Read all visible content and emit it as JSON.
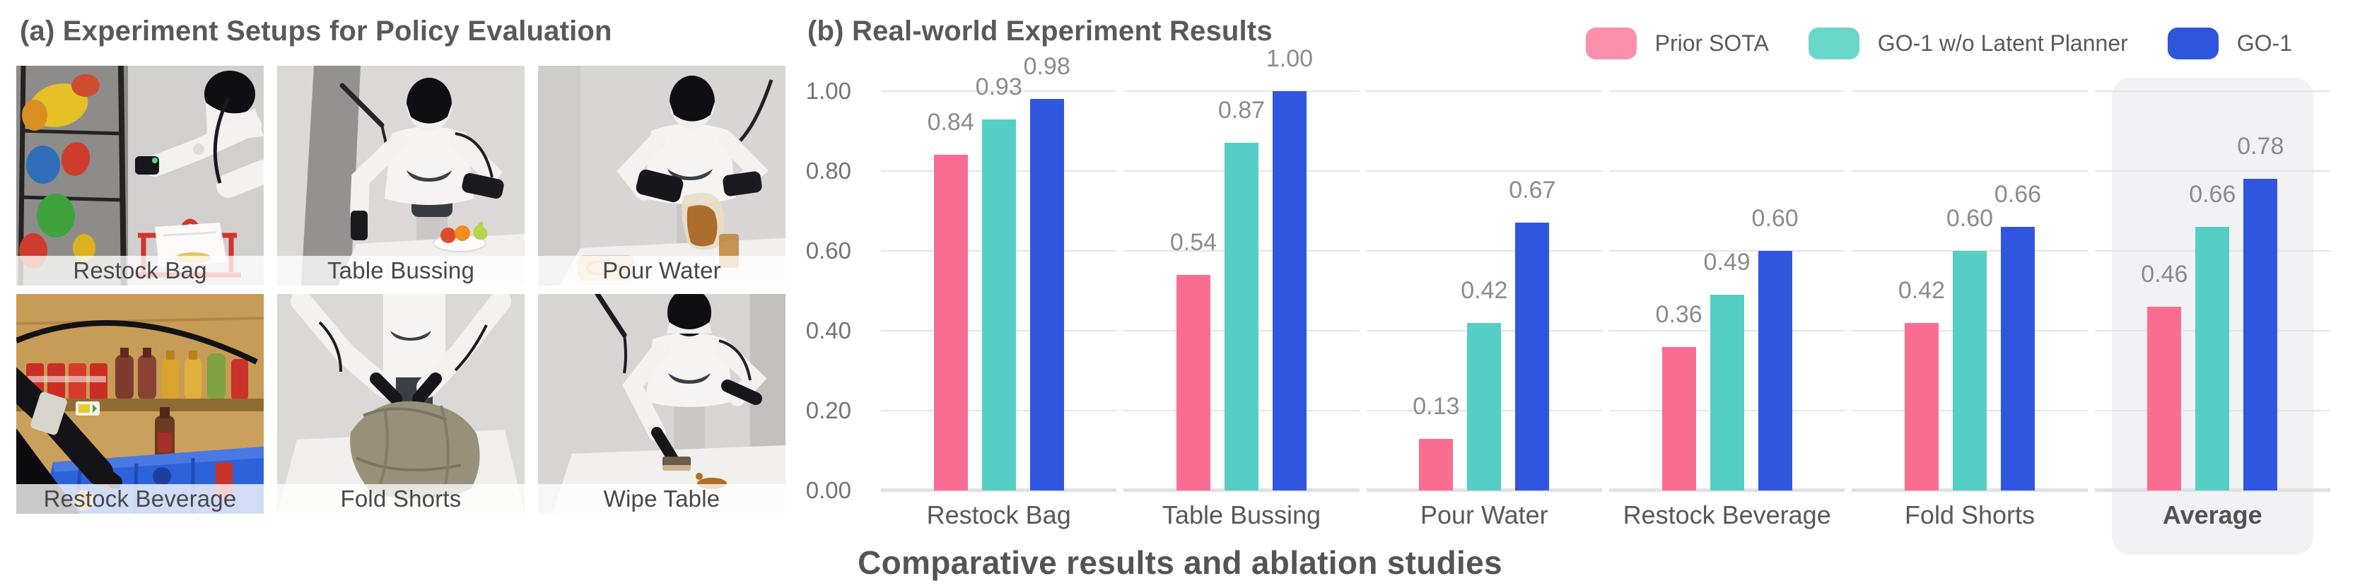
{
  "panel_a": {
    "title": "(a) Experiment Setups for Policy Evaluation",
    "photos": [
      {
        "label": "Restock Bag",
        "scene": "restock-bag"
      },
      {
        "label": "Table Bussing",
        "scene": "table-bussing"
      },
      {
        "label": "Pour Water",
        "scene": "pour-water"
      },
      {
        "label": "Restock Beverage",
        "scene": "restock-beverage"
      },
      {
        "label": "Fold Shorts",
        "scene": "fold-shorts"
      },
      {
        "label": "Wipe Table",
        "scene": "wipe-table"
      }
    ]
  },
  "panel_b": {
    "title": "(b) Real-world Experiment Results",
    "caption": "Comparative results and ablation studies",
    "legend": [
      {
        "label": "Prior SOTA",
        "color": "#fa8fab"
      },
      {
        "label": "GO-1 w/o Latent Planner",
        "color": "#69d6ca"
      },
      {
        "label": "GO-1",
        "color": "#2e55dc"
      }
    ]
  },
  "chart_data": {
    "type": "bar",
    "title": "(b) Real-world Experiment Results",
    "categories": [
      "Restock Bag",
      "Table Bussing",
      "Pour Water",
      "Restock Beverage",
      "Fold Shorts",
      "Average"
    ],
    "series": [
      {
        "name": "Prior SOTA",
        "color": "#fa6d92",
        "values": [
          0.84,
          0.54,
          0.13,
          0.36,
          0.42,
          0.46
        ]
      },
      {
        "name": "GO-1 w/o Latent Planner",
        "color": "#55cfc5",
        "values": [
          0.93,
          0.87,
          0.42,
          0.49,
          0.6,
          0.66
        ]
      },
      {
        "name": "GO-1",
        "color": "#3056e0",
        "values": [
          0.98,
          1.0,
          0.67,
          0.6,
          0.66,
          0.78
        ]
      }
    ],
    "ylim": [
      0,
      1
    ],
    "yticks": [
      "0.00",
      "0.20",
      "0.40",
      "0.60",
      "0.80",
      "1.00"
    ],
    "value_label_decimals": 2,
    "grid": true,
    "highlight_category": "Average",
    "legend_position": "top-right",
    "xlabel": "",
    "ylabel": ""
  }
}
